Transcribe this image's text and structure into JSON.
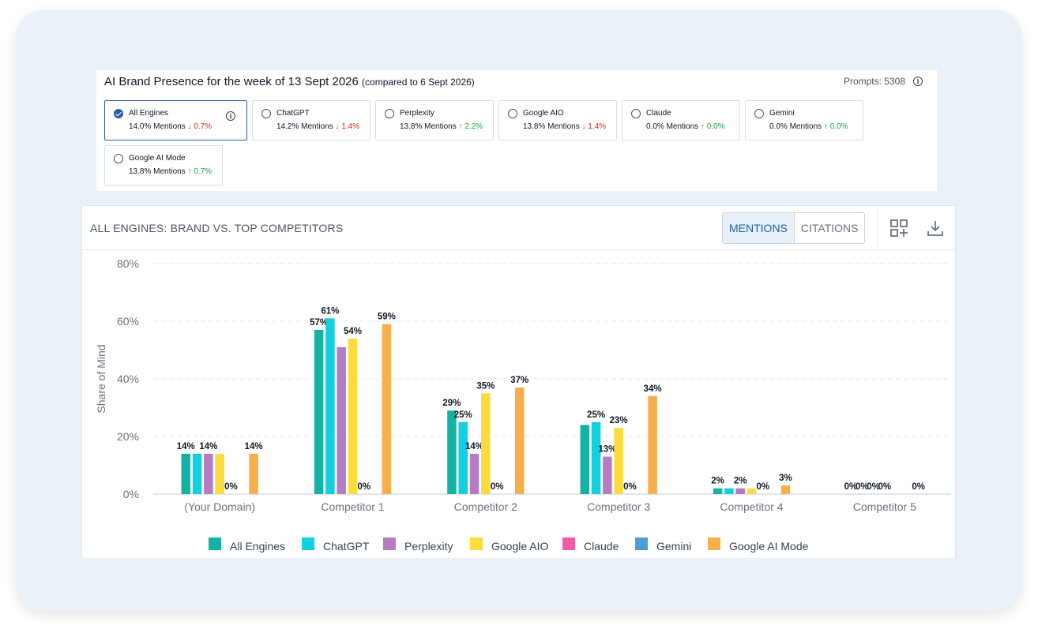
{
  "presence": {
    "title": "AI Brand Presence for the week of 13 Sept 2026",
    "comparison": "(compared to 6 Sept 2026)",
    "prompts": "Prompts: 5308",
    "engines": [
      {
        "name": "All Engines",
        "mentions": "14.0% Mentions",
        "change": "↓ 0.7%",
        "direction": "down",
        "selected": true
      },
      {
        "name": "ChatGPT",
        "mentions": "14.2% Mentions",
        "change": "↓ 1.4%",
        "direction": "down",
        "selected": false
      },
      {
        "name": "Perplexity",
        "mentions": "13.8% Mentions",
        "change": "↑ 2.2%",
        "direction": "up",
        "selected": false
      },
      {
        "name": "Google AIO",
        "mentions": "13.8% Mentions",
        "change": "↓ 1.4%",
        "direction": "down",
        "selected": false
      },
      {
        "name": "Claude",
        "mentions": "0.0% Mentions",
        "change": "↑ 0.0%",
        "direction": "up",
        "selected": false
      },
      {
        "name": "Gemini",
        "mentions": "0.0% Mentions",
        "change": "↑ 0.0%",
        "direction": "up",
        "selected": false
      },
      {
        "name": "Google AI Mode",
        "mentions": "13.8% Mentions",
        "change": "↑ 0.7%",
        "direction": "up",
        "selected": false
      }
    ]
  },
  "panel": {
    "title": "ALL ENGINES: BRAND VS. TOP COMPETITORS",
    "toggle_mentions": "MENTIONS",
    "toggle_citations": "CITATIONS",
    "icons": [
      "add-widget-icon",
      "download-icon"
    ]
  },
  "chart_data": {
    "type": "bar",
    "ylabel": "Share of Mind",
    "ylim": [
      0,
      80
    ],
    "yticks": [
      "0%",
      "20%",
      "40%",
      "60%",
      "80%"
    ],
    "grid": true,
    "legend_position": "bottom",
    "categories": [
      "(Your Domain)",
      "Competitor 1",
      "Competitor 2",
      "Competitor 3",
      "Competitor 4",
      "Competitor 5"
    ],
    "series": [
      {
        "name": "All Engines",
        "color": "#13b3a4",
        "values": [
          14,
          57,
          29,
          24,
          2,
          0
        ],
        "labels": [
          "14%",
          "57%",
          "29%",
          "",
          "2%",
          "0%"
        ]
      },
      {
        "name": "ChatGPT",
        "color": "#13d0e0",
        "values": [
          14,
          61,
          25,
          25,
          2,
          0
        ],
        "labels": [
          "",
          "61%",
          "25%",
          "25%",
          "",
          "0%"
        ]
      },
      {
        "name": "Perplexity",
        "color": "#b57bc4",
        "values": [
          14,
          51,
          14,
          13,
          2,
          0
        ],
        "labels": [
          "14%",
          "",
          "14%",
          "13%",
          "2%",
          "0%"
        ]
      },
      {
        "name": "Google AIO",
        "color": "#fbdc3c",
        "values": [
          14,
          54,
          35,
          23,
          2,
          0
        ],
        "labels": [
          "",
          "54%",
          "35%",
          "23%",
          "",
          "0%"
        ]
      },
      {
        "name": "Claude",
        "color": "#f25aa7",
        "values": [
          0,
          0,
          0,
          0,
          0,
          0
        ],
        "labels": [
          "0%",
          "0%",
          "0%",
          "0%",
          "0%",
          ""
        ]
      },
      {
        "name": "Gemini",
        "color": "#4a9fd8",
        "values": [
          0,
          0,
          0,
          0,
          0,
          0
        ],
        "labels": [
          "",
          "",
          "",
          "",
          "",
          ""
        ]
      },
      {
        "name": "Google AI Mode",
        "color": "#f9ae4c",
        "values": [
          14,
          59,
          37,
          34,
          3,
          0
        ],
        "labels": [
          "14%",
          "59%",
          "37%",
          "34%",
          "3%",
          "0%"
        ]
      }
    ]
  }
}
